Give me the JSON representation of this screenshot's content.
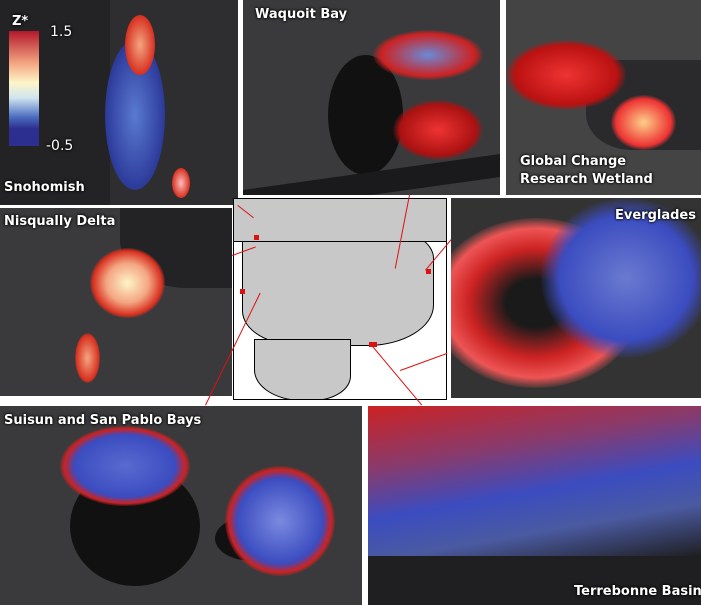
{
  "legend": {
    "title": "Z*",
    "max": "1.5",
    "min": "-0.5",
    "colors": [
      "#b2182b",
      "#f4a582",
      "#fdf5c8",
      "#d1e5f0",
      "#4a6cc0",
      "#2c2f8f"
    ]
  },
  "panels": {
    "snohomish": "Snohomish",
    "waquoit": "Waquoit Bay",
    "gcrew_line1": "Global Change",
    "gcrew_line2": "Research Wetland",
    "nisqually": "Nisqually Delta",
    "everglades": "Everglades",
    "suisun": "Suisun and San Pablo Bays",
    "terrebonne": "Terrebonne Basin"
  },
  "colors": {
    "basemap": "#3a3a3c",
    "water": "#1f1f22",
    "high": "#d7301f",
    "low": "#3b4cc0",
    "leader_line": "#dd1111"
  }
}
